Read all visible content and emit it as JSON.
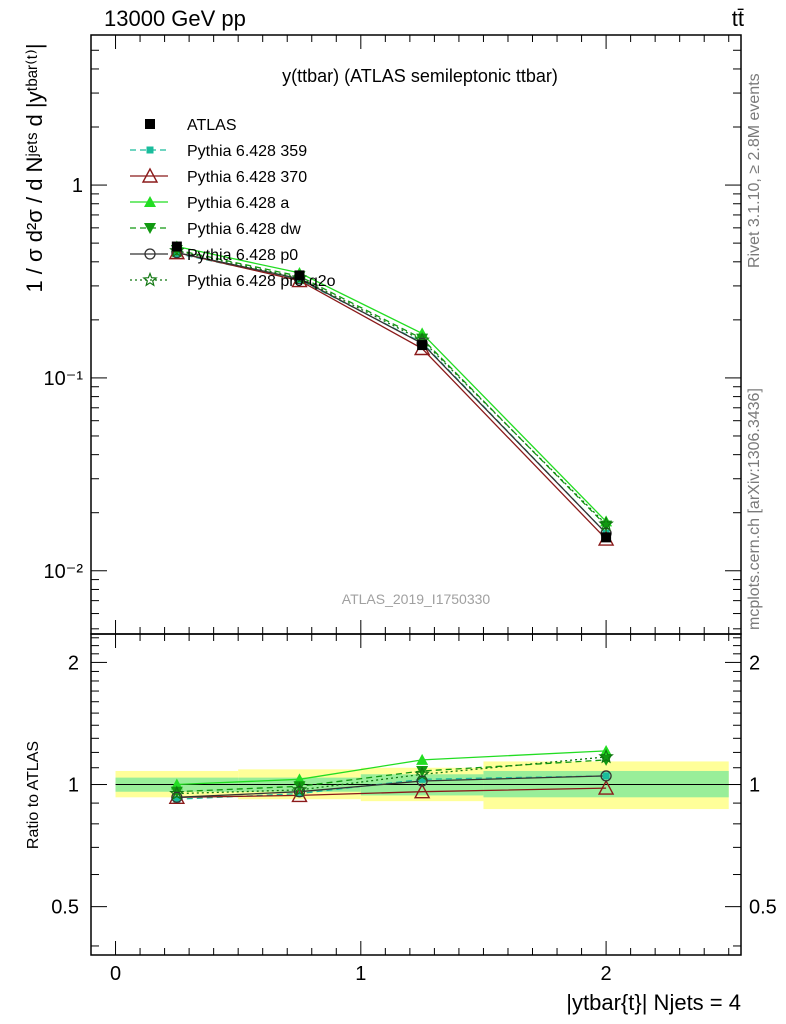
{
  "header": {
    "left": "13000 GeV pp",
    "right": "tt̄"
  },
  "side_text": {
    "rivet": "Rivet 3.1.10, ≥ 2.8M events",
    "mcplots": "mcplots.cern.ch [arXiv:1306.3436]"
  },
  "chart_data": {
    "type": "line",
    "title": "y(ttbar) (ATLAS semileptonic ttbar)",
    "watermark": "ATLAS_2019_I1750330",
    "ylabel": "1 / σ d²σ / d Nʲᵉᵗˢ d |yᵗᵇᵃʳ⁽ᵗ⁾|",
    "xlabel": "|ytbar{t}| Njets = 4",
    "ratio_ylabel": "Ratio to ATLAS",
    "xlim": [
      -0.1,
      2.55
    ],
    "ylim": [
      0.0047,
      6.0
    ],
    "yscale": "log",
    "ratio_ylim": [
      0.38,
      2.35
    ],
    "x_ticks": [
      "0",
      "1",
      "2"
    ],
    "y_ticks": [
      "10⁻²",
      "10⁻¹",
      "1"
    ],
    "ratio_y_ticks": [
      "0.5",
      "1",
      "2"
    ],
    "x": [
      0.25,
      0.75,
      1.25,
      2.0
    ],
    "bins": [
      [
        0,
        0.5
      ],
      [
        0.5,
        1.0
      ],
      [
        1.0,
        1.5
      ],
      [
        1.5,
        2.5
      ]
    ],
    "data": {
      "name": "ATLAS",
      "values": [
        0.48,
        0.34,
        0.148,
        0.0149
      ]
    },
    "band_inner": [
      [
        0.96,
        1.04
      ],
      [
        0.96,
        1.04
      ],
      [
        0.94,
        1.06
      ],
      [
        0.93,
        1.08
      ]
    ],
    "band_outer": [
      [
        0.93,
        1.08
      ],
      [
        0.92,
        1.09
      ],
      [
        0.91,
        1.1
      ],
      [
        0.87,
        1.14
      ]
    ],
    "series": [
      {
        "name": "Pythia 6.428 359",
        "color": "#1abc9c",
        "dash": "6,4",
        "marker": "square-small",
        "ratio": [
          0.92,
          0.95,
          1.03,
          1.05
        ]
      },
      {
        "name": "Pythia 6.428 370",
        "color": "#8b1a1a",
        "dash": "",
        "marker": "triangle-open",
        "ratio": [
          0.93,
          0.94,
          0.96,
          0.98
        ]
      },
      {
        "name": "Pythia 6.428 a",
        "color": "#22dd22",
        "dash": "",
        "marker": "triangle",
        "ratio": [
          1.0,
          1.03,
          1.15,
          1.21
        ]
      },
      {
        "name": "Pythia 6.428 dw",
        "color": "#119911",
        "dash": "6,4",
        "marker": "triangle-down",
        "ratio": [
          0.96,
          0.99,
          1.08,
          1.15
        ]
      },
      {
        "name": "Pythia 6.428 p0",
        "color": "#333333",
        "dash": "",
        "marker": "circle-open",
        "ratio": [
          0.93,
          0.96,
          1.02,
          1.05
        ]
      },
      {
        "name": "Pythia 6.428 pro-q2o",
        "color": "#117711",
        "dash": "2,3",
        "marker": "star",
        "ratio": [
          0.95,
          0.97,
          1.06,
          1.17
        ]
      }
    ]
  }
}
